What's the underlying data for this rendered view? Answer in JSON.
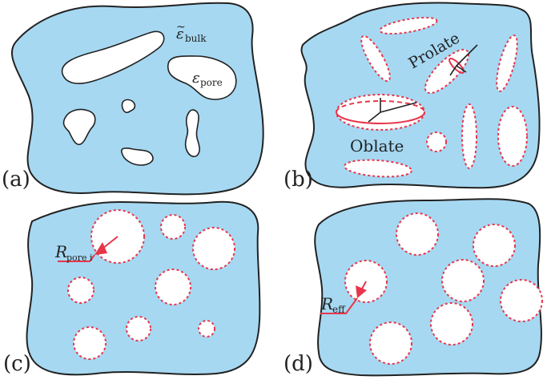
{
  "panels": {
    "a": {
      "label": "(a)",
      "bulk_symbol": "ε",
      "bulk_tilde": "~",
      "bulk_sub": "bulk",
      "pore_symbol": "ε",
      "pore_sub": "pore"
    },
    "b": {
      "label": "(b)",
      "prolate": "Prolate",
      "oblate": "Oblate"
    },
    "c": {
      "label": "(c)",
      "radius_symbol": "R",
      "radius_sub": "pore i"
    },
    "d": {
      "label": "(d)",
      "radius_symbol": "R",
      "radius_sub": "eff"
    }
  },
  "colors": {
    "matrix": "#a6d8f2",
    "outline": "#222222",
    "dashed": "#e8354a"
  }
}
